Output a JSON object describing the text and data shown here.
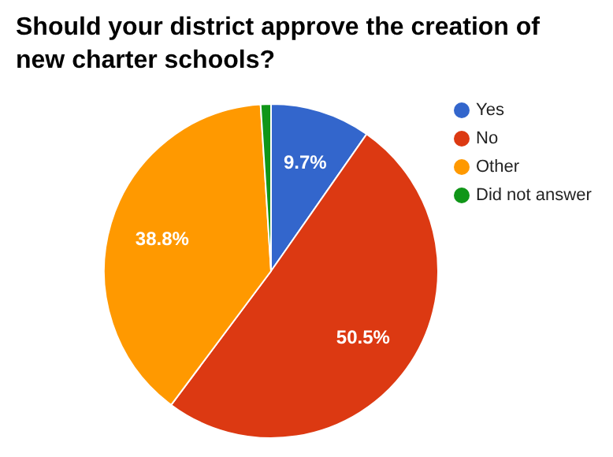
{
  "chart_data": {
    "type": "pie",
    "title": "Should your district approve the creation of new charter schools?",
    "categories": [
      "Yes",
      "No",
      "Other",
      "Did not answer"
    ],
    "values": [
      9.7,
      50.5,
      38.8,
      1.0
    ],
    "colors": [
      "#3366cc",
      "#dc3912",
      "#ff9900",
      "#109618"
    ],
    "value_labels": [
      "9.7%",
      "50.5%",
      "38.8%",
      null
    ],
    "legend": "right"
  }
}
